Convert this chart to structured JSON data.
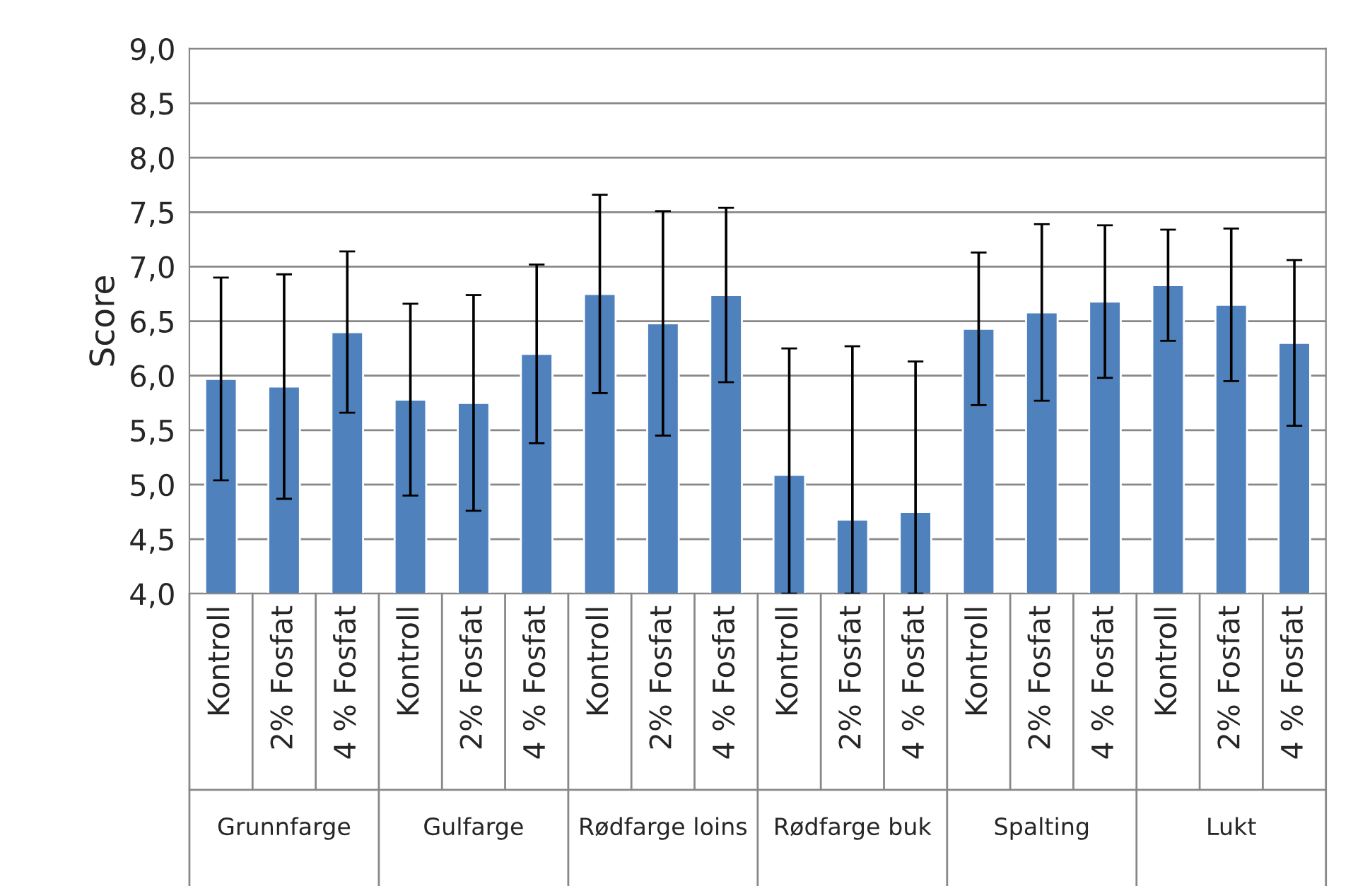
{
  "chart_data": {
    "type": "bar",
    "ylabel": "Score",
    "categories": [
      "Kontroll",
      "2% Fosfat",
      "4 % Fosfat",
      "Kontroll",
      "2% Fosfat",
      "4 % Fosfat",
      "Kontroll",
      "2% Fosfat",
      "4 % Fosfat",
      "Kontroll",
      "2% Fosfat",
      "4 % Fosfat",
      "Kontroll",
      "2% Fosfat",
      "4 % Fosfat",
      "Kontroll",
      "2% Fosfat",
      "4 % Fosfat"
    ],
    "values": [
      5.97,
      5.9,
      6.4,
      5.78,
      5.75,
      6.2,
      6.75,
      6.48,
      6.74,
      5.09,
      4.68,
      4.75,
      6.43,
      6.58,
      6.68,
      6.83,
      6.65,
      6.3
    ],
    "errors": [
      0.93,
      1.03,
      0.74,
      0.88,
      0.99,
      0.82,
      0.91,
      1.03,
      0.8,
      [
        4.0,
        6.25
      ],
      [
        4.0,
        6.27
      ],
      [
        4.0,
        6.13
      ],
      0.7,
      0.81,
      0.7,
      0.51,
      0.7,
      0.76
    ],
    "color": "#4f81bd",
    "annotations": [
      "Grunnfarge",
      "Gulfarge",
      "Rødfarge loins",
      "Rødfarge buk",
      "Spalting",
      "Lukt"
    ],
    "ylim": [
      4.0,
      9.0
    ],
    "yticks": [
      {
        "value": 4.0,
        "label": "4,0"
      },
      {
        "value": 4.5,
        "label": "4,5"
      },
      {
        "value": 5.0,
        "label": "5,0"
      },
      {
        "value": 5.5,
        "label": "5,5"
      },
      {
        "value": 6.0,
        "label": "6,0"
      },
      {
        "value": 6.5,
        "label": "6,5"
      },
      {
        "value": 7.0,
        "label": "7,0"
      },
      {
        "value": 7.5,
        "label": "7,5"
      },
      {
        "value": 8.0,
        "label": "8,0"
      },
      {
        "value": 8.5,
        "label": "8,5"
      },
      {
        "value": 9.0,
        "label": "9,0"
      }
    ],
    "grid": "y"
  }
}
